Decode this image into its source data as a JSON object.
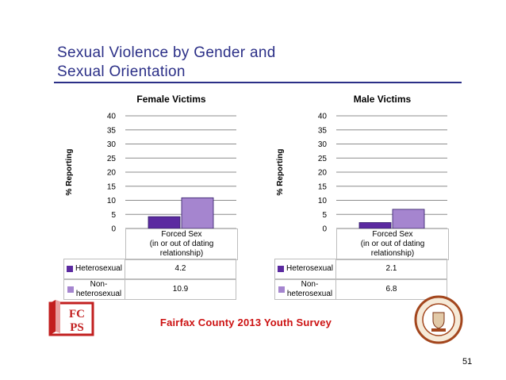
{
  "slide": {
    "title_line1": "Sexual Violence by Gender and",
    "title_line2": "Sexual Orientation",
    "footer": "Fairfax County 2013 Youth Survey",
    "page_number": "51",
    "logo_text": "FCPS",
    "accent_color": "#2b2f87",
    "footer_color": "#cc1111"
  },
  "chart_data": [
    {
      "type": "bar",
      "title": "Female Victims",
      "ylabel": "% Reporting",
      "xlabel": "",
      "categories": [
        "Forced Sex (in or out of dating relationship)"
      ],
      "category_lines": [
        "Forced Sex",
        "(in or out of dating",
        "relationship)"
      ],
      "series": [
        {
          "name": "Heterosexual",
          "legend_lines": [
            "Heterosexual"
          ],
          "values": [
            4.2
          ],
          "display": [
            "4.2"
          ],
          "color": "#5b2aa0"
        },
        {
          "name": "Non-heterosexual",
          "legend_lines": [
            "Non-",
            "heterosexual"
          ],
          "values": [
            10.9
          ],
          "display": [
            "10.9"
          ],
          "color": "#a585cf"
        }
      ],
      "ylim": [
        0,
        40
      ],
      "yticks": [
        0,
        5,
        10,
        15,
        20,
        25,
        30,
        35,
        40
      ],
      "grid": true,
      "legend": "data-table"
    },
    {
      "type": "bar",
      "title": "Male Victims",
      "ylabel": "% Reporting",
      "xlabel": "",
      "categories": [
        "Forced Sex (in or out of dating relationship)"
      ],
      "category_lines": [
        "Forced Sex",
        "(in or out of dating",
        "relationship)"
      ],
      "series": [
        {
          "name": "Heterosexual",
          "legend_lines": [
            "Heterosexual"
          ],
          "values": [
            2.1
          ],
          "display": [
            "2.1"
          ],
          "color": "#5b2aa0"
        },
        {
          "name": "Non-heterosexual",
          "legend_lines": [
            "Non-",
            "heterosexual"
          ],
          "values": [
            6.8
          ],
          "display": [
            "6.8"
          ],
          "color": "#a585cf"
        }
      ],
      "ylim": [
        0,
        40
      ],
      "yticks": [
        0,
        5,
        10,
        15,
        20,
        25,
        30,
        35,
        40
      ],
      "grid": true,
      "legend": "data-table"
    }
  ]
}
